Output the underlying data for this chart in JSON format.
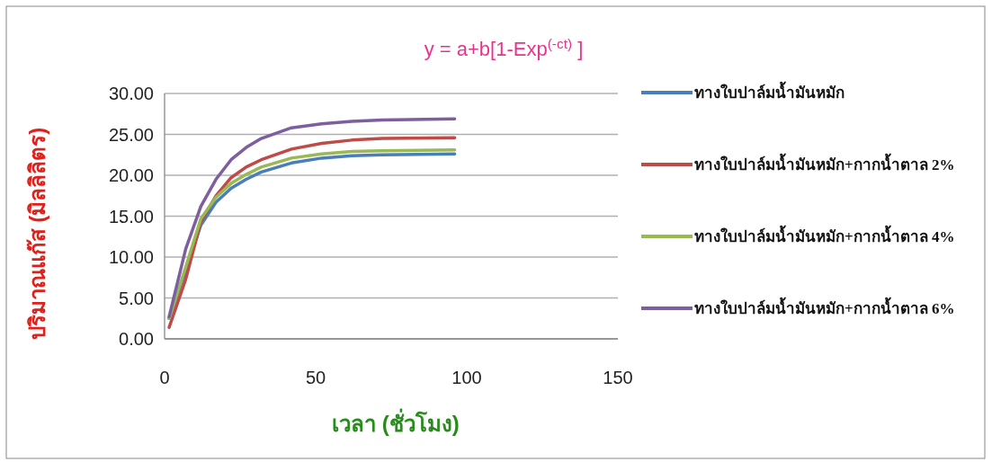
{
  "chart_data": {
    "type": "line",
    "title": "y = a+b[1-Exp$^{(-ct)}$ ]",
    "xlabel": "เวลา (ชั่วโมง)",
    "ylabel": "ปริมาณแก๊ส (มิลลิลิตร)",
    "x": [
      1.5,
      7,
      12,
      17,
      22,
      27,
      32,
      42,
      52,
      62,
      72,
      96
    ],
    "series": [
      {
        "name": "ทางใบปาล์มน้ำมันหมัก",
        "color": "#4a7ebb",
        "values": [
          2.5,
          8.4,
          13.9,
          16.7,
          18.4,
          19.5,
          20.4,
          21.5,
          22.1,
          22.4,
          22.5,
          22.6
        ]
      },
      {
        "name": "ทางใบปาล์มน้ำมันหมัก+กากน้ำตาล 2%",
        "color": "#be4b48",
        "values": [
          1.4,
          7.3,
          14.3,
          17.5,
          19.7,
          21.0,
          21.9,
          23.2,
          23.9,
          24.3,
          24.5,
          24.6
        ]
      },
      {
        "name": "ทางใบปาล์มน้ำมันหมัก+กากน้ำตาล 4%",
        "color": "#98b954",
        "values": [
          2.5,
          8.8,
          14.7,
          17.3,
          19.0,
          20.1,
          21.0,
          22.1,
          22.6,
          22.9,
          23.0,
          23.1
        ]
      },
      {
        "name": "ทางใบปาล์มน้ำมันหมัก+กากน้ำตาล 6%",
        "color": "#7d5fa0",
        "values": [
          2.7,
          11.0,
          16.2,
          19.5,
          21.9,
          23.4,
          24.5,
          25.8,
          26.3,
          26.6,
          26.75,
          26.9
        ]
      }
    ],
    "xlim": [
      0,
      150
    ],
    "xticks": [
      0,
      50,
      100,
      150
    ],
    "ylim": [
      0,
      30
    ],
    "yticks": [
      {
        "value": 0,
        "label": "0.00"
      },
      {
        "value": 5,
        "label": "5.00"
      },
      {
        "value": 10,
        "label": "10.00"
      },
      {
        "value": 15,
        "label": "15.00"
      },
      {
        "value": 20,
        "label": "20.00"
      },
      {
        "value": 25,
        "label": "25.00"
      },
      {
        "value": 30,
        "label": "30.00"
      }
    ],
    "grid": "y",
    "legend": "right",
    "marker": "none",
    "line_style": "solid"
  }
}
